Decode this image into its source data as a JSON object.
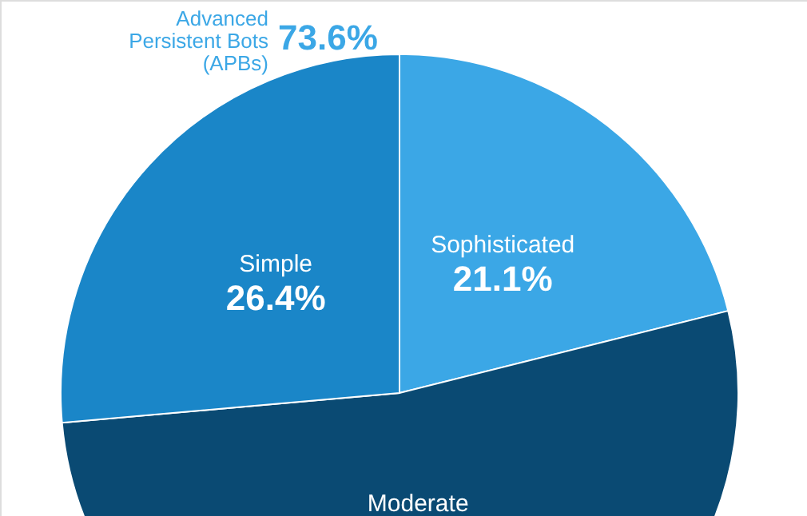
{
  "chart_data": {
    "type": "pie",
    "categories": [
      "Sophisticated",
      "Moderate",
      "Simple"
    ],
    "values": [
      21.1,
      52.5,
      26.4
    ],
    "colors": [
      "#3ba7e6",
      "#0a4a73",
      "#1a86c8"
    ],
    "value_labels": [
      "21.1%",
      null,
      "26.4%"
    ],
    "annotations": [
      "Advanced Persistent Bots (APBs)",
      "73.6%"
    ]
  }
}
